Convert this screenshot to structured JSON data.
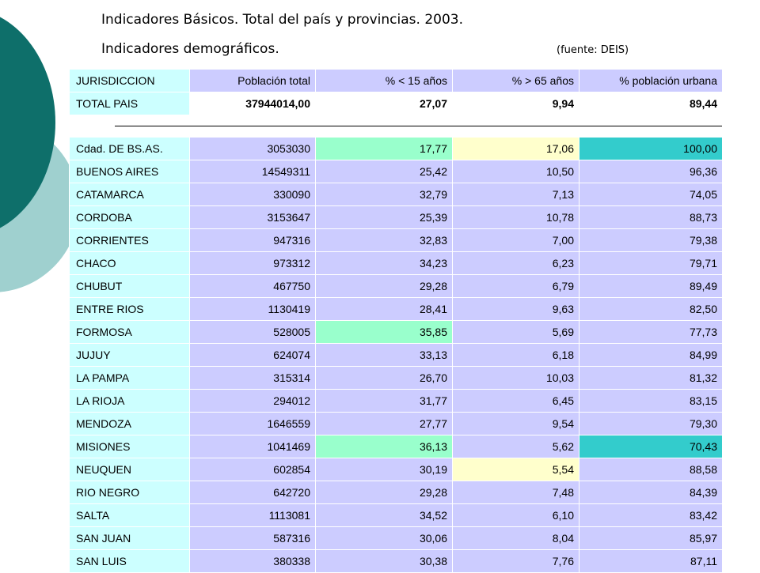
{
  "header": {
    "title_line1": "Indicadores Básicos. Total del país y provincias. 2003.",
    "title_line2": "Indicadores demográficos.",
    "source": "(fuente: DEIS)"
  },
  "table": {
    "columns": [
      "JURISDICCION",
      "Población total",
      "% < 15 años",
      "% > 65 años",
      "% población urbana"
    ],
    "total_row": [
      "TOTAL PAIS",
      "37944014,00",
      "27,07",
      "9,94",
      "89,44"
    ],
    "rows": [
      [
        "Cdad. DE BS.AS.",
        "3053030",
        "17,77",
        "17,06",
        "100,00"
      ],
      [
        "BUENOS AIRES",
        "14549311",
        "25,42",
        "10,50",
        "96,36"
      ],
      [
        "CATAMARCA",
        "330090",
        "32,79",
        "7,13",
        "74,05"
      ],
      [
        "CORDOBA",
        "3153647",
        "25,39",
        "10,78",
        "88,73"
      ],
      [
        "CORRIENTES",
        "947316",
        "32,83",
        "7,00",
        "79,38"
      ],
      [
        "CHACO",
        "973312",
        "34,23",
        "6,23",
        "79,71"
      ],
      [
        "CHUBUT",
        "467750",
        "29,28",
        "6,79",
        "89,49"
      ],
      [
        "ENTRE RIOS",
        "1130419",
        "28,41",
        "9,63",
        "82,50"
      ],
      [
        "FORMOSA",
        "528005",
        "35,85",
        "5,69",
        "77,73"
      ],
      [
        "JUJUY",
        "624074",
        "33,13",
        "6,18",
        "84,99"
      ],
      [
        "LA PAMPA",
        "315314",
        "26,70",
        "10,03",
        "81,32"
      ],
      [
        "LA RIOJA",
        "294012",
        "31,77",
        "6,45",
        "83,15"
      ],
      [
        "MENDOZA",
        "1646559",
        "27,77",
        "9,54",
        "79,30"
      ],
      [
        "MISIONES",
        "1041469",
        "36,13",
        "5,62",
        "70,43"
      ],
      [
        "NEUQUEN",
        "602854",
        "30,19",
        "5,54",
        "88,58"
      ],
      [
        "RIO NEGRO",
        "642720",
        "29,28",
        "7,48",
        "84,39"
      ],
      [
        "SALTA",
        "1113081",
        "34,52",
        "6,10",
        "83,42"
      ],
      [
        "SAN JUAN",
        "587316",
        "30,06",
        "8,04",
        "85,97"
      ],
      [
        "SAN LUIS",
        "380338",
        "30,38",
        "7,76",
        "87,11"
      ]
    ],
    "highlights": {
      "min_color": "#99ffcc",
      "max_color": "#ffffcc",
      "urban_color": "#33cccc",
      "cells": [
        {
          "row": 0,
          "col": 2,
          "color": "#99ffcc"
        },
        {
          "row": 0,
          "col": 3,
          "color": "#ffffcc"
        },
        {
          "row": 0,
          "col": 4,
          "color": "#33cccc"
        },
        {
          "row": 8,
          "col": 2,
          "color": "#99ffcc"
        },
        {
          "row": 13,
          "col": 2,
          "color": "#99ffcc"
        },
        {
          "row": 13,
          "col": 4,
          "color": "#33cccc"
        },
        {
          "row": 14,
          "col": 3,
          "color": "#ffffcc"
        }
      ]
    }
  }
}
